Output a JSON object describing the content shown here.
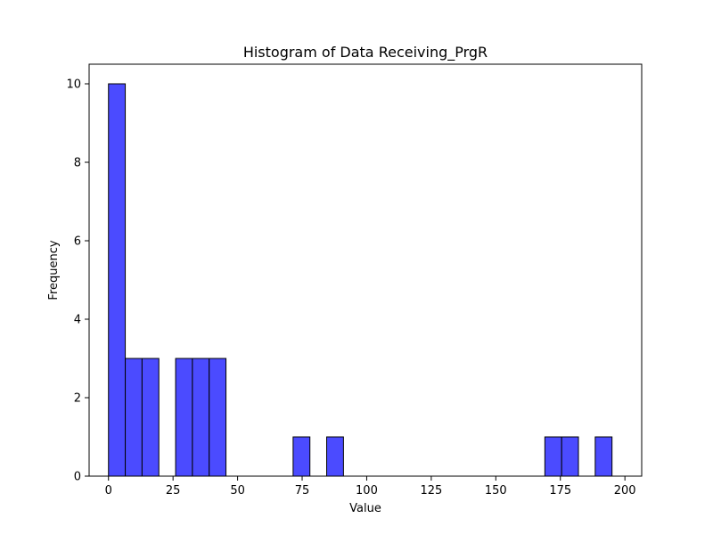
{
  "chart_data": {
    "type": "bar",
    "title": "Histogram of Data Receiving_PrgR",
    "xlabel": "Value",
    "ylabel": "Frequency",
    "bin_start": 0,
    "bin_width": 6.5,
    "counts": [
      10,
      3,
      3,
      0,
      3,
      3,
      3,
      0,
      0,
      0,
      0,
      1,
      0,
      1,
      0,
      0,
      0,
      0,
      0,
      0,
      0,
      0,
      0,
      0,
      0,
      0,
      1,
      1,
      0,
      1
    ],
    "xlim": [
      -7.5,
      206.5
    ],
    "ylim": [
      0,
      10.5
    ],
    "xticks": [
      0,
      25,
      50,
      75,
      100,
      125,
      150,
      175,
      200
    ],
    "yticks": [
      0,
      2,
      4,
      6,
      8,
      10
    ],
    "grid": false,
    "bar_color": "#4b4bff",
    "edge_color": "#000000"
  }
}
